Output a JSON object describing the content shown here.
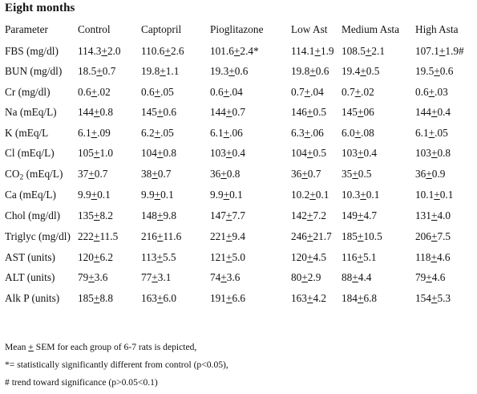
{
  "title": "Eight months",
  "headers": [
    "Parameter",
    "Control",
    "Captopril",
    "Pioglitazone",
    "Low Ast",
    "Medium Asta",
    "High Asta"
  ],
  "rows": [
    [
      "FBS (mg/dl)",
      "114.3+2.0",
      "110.6+2.6",
      "101.6+2.4*",
      "114.1+1.9",
      "108.5+2.1",
      "107.1+1.9#"
    ],
    [
      "BUN (mg/dl)",
      "18.5+0.7",
      "19.8+1.1",
      "19.3+0.6",
      "19.8+0.6",
      "19.4+0.5",
      "19.5+0.6"
    ],
    [
      "Cr (mg/dl)",
      "0.6+.02",
      "0.6+.05",
      "0.6+.04",
      "0.7+.04",
      "0.7+.02",
      "0.6+.03"
    ],
    [
      "Na (mEq/L)",
      "144+0.8",
      "145+0.6",
      "144+0.7",
      "146+0.5",
      "145+06",
      "144+0.4"
    ],
    [
      "K (mEq/L",
      "6.1+.09",
      "6.2+.05",
      "6.1+.06",
      "6.3+.06",
      "6.0+.08",
      "6.1+.05"
    ],
    [
      "Cl (mEq/L)",
      "105+1.0",
      "104+0.8",
      "103+0.4",
      "104+0.5",
      "103+0.4",
      "103+0.8"
    ],
    [
      "CO2 (mEq/L)",
      "37+0.7",
      "38+0.7",
      "36+0.8",
      "36+0.7",
      "35+0.5",
      "36+0.9"
    ],
    [
      "Ca (mEq/L)",
      "9.9+0.1",
      "9.9+0.1",
      "9.9+0.1",
      "10.2+0.1",
      "10.3+0.1",
      "10.1+0.1"
    ],
    [
      "Chol (mg/dl)",
      "135+8.2",
      "148+9.8",
      "147+7.7",
      "142+7.2",
      "149+4.7",
      "131+4.0"
    ],
    [
      "Triglyc (mg/dl)",
      "222+11.5",
      "216+11.6",
      "221+9.4",
      "246+21.7",
      "185+10.5",
      "206+7.5"
    ],
    [
      "AST (units)",
      "120+6.2",
      "113+5.5",
      "121+5.0",
      "120+4.5",
      "116+5.1",
      "118+4.6"
    ],
    [
      "ALT (units)",
      "79+3.6",
      "77+3.1",
      "74+3.6",
      "80+2.9",
      "88+4.4",
      "79+4.6"
    ],
    [
      "Alk P (units)",
      "185+8.8",
      "163+6.0",
      "191+6.6",
      "163+4.2",
      "184+6.8",
      "154+5.3"
    ]
  ],
  "notes": [
    "Mean + SEM for each group of 6-7 rats is depicted,",
    "*= statistically significantly different from control (p<0.05),",
    "# trend toward significance (p>0.05<0.1)"
  ]
}
